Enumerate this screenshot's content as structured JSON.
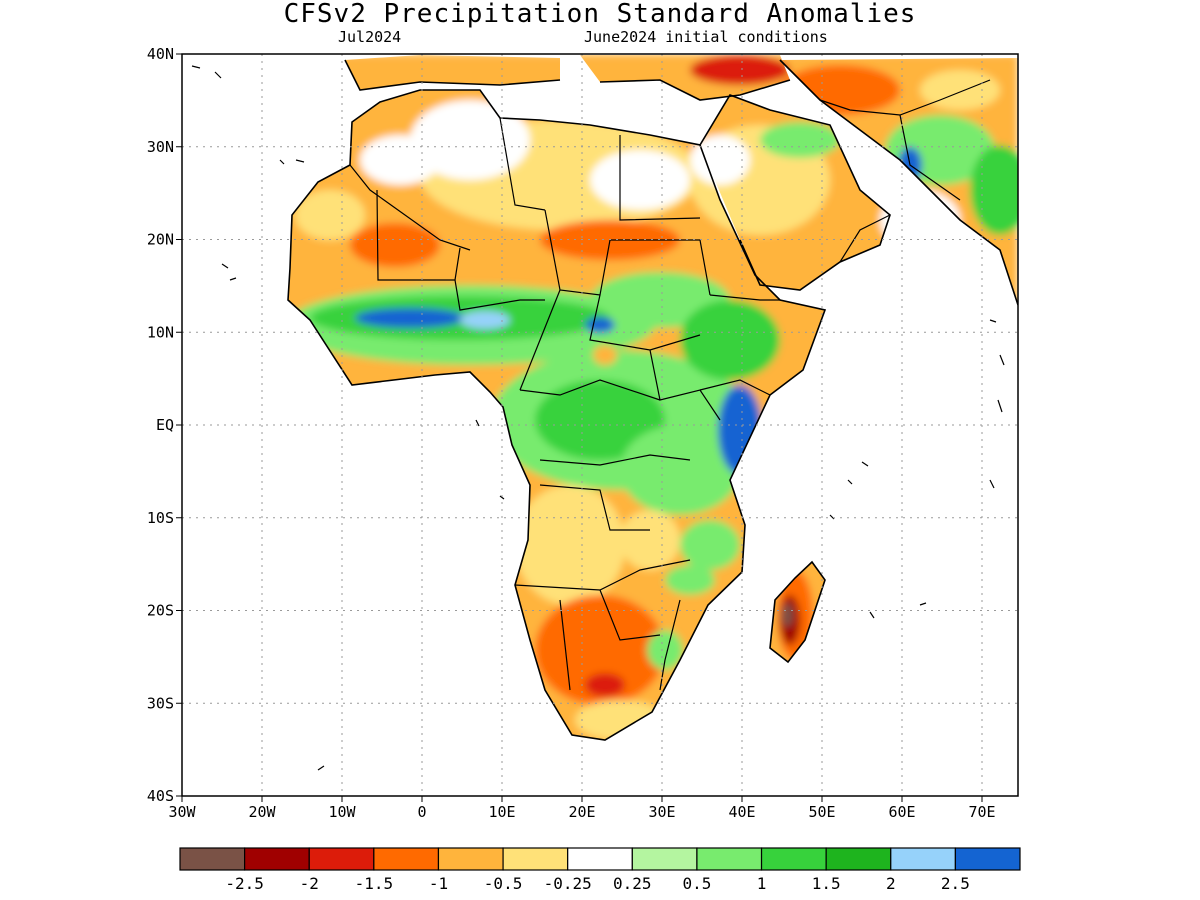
{
  "title": "CFSv2 Precipitation Standard Anomalies",
  "subtitle_left": "Jul2024",
  "subtitle_right": "June2024 initial conditions",
  "lat_labels": [
    "40N",
    "30N",
    "20N",
    "10N",
    "EQ",
    "10S",
    "20S",
    "30S",
    "40S"
  ],
  "lon_labels": [
    "30W",
    "20W",
    "10W",
    "0",
    "10E",
    "20E",
    "30E",
    "40E",
    "50E",
    "60E",
    "70E"
  ],
  "colorbar": {
    "colors": [
      "#7a5246",
      "#a00000",
      "#dc1c0a",
      "#ff6a00",
      "#ffb43c",
      "#ffe178",
      "#ffffff",
      "#b4f5a0",
      "#78eb6e",
      "#37d23c",
      "#1eb41e",
      "#96d2fa",
      "#1464d2"
    ],
    "labels": [
      "-2.5",
      "-2",
      "-1.5",
      "-1",
      "-0.5",
      "-0.25",
      "0.25",
      "0.5",
      "1",
      "1.5",
      "2",
      "2.5"
    ]
  }
}
